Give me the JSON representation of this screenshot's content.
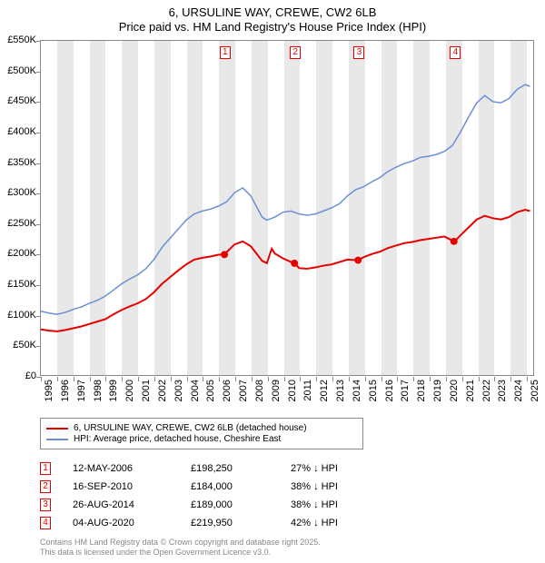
{
  "title": "6, URSULINE WAY, CREWE, CW2 6LB",
  "subtitle": "Price paid vs. HM Land Registry's House Price Index (HPI)",
  "chart": {
    "type": "line",
    "background_color": "#ffffff",
    "grid_band_color": "#e8e8e8",
    "axis_color": "#888888",
    "ylim": [
      0,
      550000
    ],
    "yticks": [
      0,
      50000,
      100000,
      150000,
      200000,
      250000,
      300000,
      350000,
      400000,
      450000,
      500000,
      550000
    ],
    "ytick_labels": [
      "£0",
      "£50K",
      "£100K",
      "£150K",
      "£200K",
      "£250K",
      "£300K",
      "£350K",
      "£400K",
      "£450K",
      "£500K",
      "£550K"
    ],
    "xlim": [
      1995,
      2025.5
    ],
    "xticks": [
      1995,
      1996,
      1997,
      1998,
      1999,
      2000,
      2001,
      2002,
      2003,
      2004,
      2005,
      2006,
      2007,
      2008,
      2009,
      2010,
      2011,
      2012,
      2013,
      2014,
      2015,
      2016,
      2017,
      2018,
      2019,
      2020,
      2021,
      2022,
      2023,
      2024,
      2025
    ],
    "label_fontsize": 11,
    "series": [
      {
        "name": "HPI: Average price, detached house, Cheshire East",
        "color": "#6a8fd4",
        "line_width": 1.5,
        "data": [
          [
            1995,
            105000
          ],
          [
            1995.5,
            102000
          ],
          [
            1996,
            100000
          ],
          [
            1996.5,
            103000
          ],
          [
            1997,
            108000
          ],
          [
            1997.5,
            112000
          ],
          [
            1998,
            118000
          ],
          [
            1998.5,
            123000
          ],
          [
            1999,
            130000
          ],
          [
            1999.5,
            140000
          ],
          [
            2000,
            150000
          ],
          [
            2000.5,
            158000
          ],
          [
            2001,
            165000
          ],
          [
            2001.5,
            175000
          ],
          [
            2002,
            190000
          ],
          [
            2002.5,
            210000
          ],
          [
            2003,
            225000
          ],
          [
            2003.5,
            240000
          ],
          [
            2004,
            255000
          ],
          [
            2004.5,
            265000
          ],
          [
            2005,
            270000
          ],
          [
            2005.5,
            273000
          ],
          [
            2006,
            278000
          ],
          [
            2006.5,
            285000
          ],
          [
            2007,
            300000
          ],
          [
            2007.5,
            308000
          ],
          [
            2008,
            295000
          ],
          [
            2008.3,
            280000
          ],
          [
            2008.7,
            260000
          ],
          [
            2009,
            255000
          ],
          [
            2009.5,
            260000
          ],
          [
            2010,
            268000
          ],
          [
            2010.5,
            270000
          ],
          [
            2011,
            265000
          ],
          [
            2011.5,
            263000
          ],
          [
            2012,
            265000
          ],
          [
            2012.5,
            270000
          ],
          [
            2013,
            275000
          ],
          [
            2013.5,
            282000
          ],
          [
            2014,
            295000
          ],
          [
            2014.5,
            305000
          ],
          [
            2015,
            310000
          ],
          [
            2015.5,
            318000
          ],
          [
            2016,
            325000
          ],
          [
            2016.5,
            335000
          ],
          [
            2017,
            342000
          ],
          [
            2017.5,
            348000
          ],
          [
            2018,
            352000
          ],
          [
            2018.5,
            358000
          ],
          [
            2019,
            360000
          ],
          [
            2019.5,
            363000
          ],
          [
            2020,
            368000
          ],
          [
            2020.5,
            378000
          ],
          [
            2021,
            400000
          ],
          [
            2021.5,
            425000
          ],
          [
            2022,
            448000
          ],
          [
            2022.5,
            460000
          ],
          [
            2023,
            450000
          ],
          [
            2023.5,
            448000
          ],
          [
            2024,
            455000
          ],
          [
            2024.5,
            470000
          ],
          [
            2025,
            478000
          ],
          [
            2025.3,
            475000
          ]
        ]
      },
      {
        "name": "6, URSULINE WAY, CREWE, CW2 6LB (detached house)",
        "color": "#e60000",
        "line_width": 2,
        "data": [
          [
            1995,
            75000
          ],
          [
            1995.5,
            73000
          ],
          [
            1996,
            72000
          ],
          [
            1996.5,
            74000
          ],
          [
            1997,
            77000
          ],
          [
            1997.5,
            80000
          ],
          [
            1998,
            84000
          ],
          [
            1998.5,
            88000
          ],
          [
            1999,
            92000
          ],
          [
            1999.5,
            100000
          ],
          [
            2000,
            107000
          ],
          [
            2000.5,
            113000
          ],
          [
            2001,
            118000
          ],
          [
            2001.5,
            125000
          ],
          [
            2002,
            136000
          ],
          [
            2002.5,
            150000
          ],
          [
            2003,
            161000
          ],
          [
            2003.5,
            172000
          ],
          [
            2004,
            182000
          ],
          [
            2004.5,
            190000
          ],
          [
            2005,
            193000
          ],
          [
            2005.5,
            195000
          ],
          [
            2006,
            198000
          ],
          [
            2006.37,
            198250
          ],
          [
            2006.5,
            202000
          ],
          [
            2007,
            215000
          ],
          [
            2007.5,
            220000
          ],
          [
            2008,
            212000
          ],
          [
            2008.3,
            202000
          ],
          [
            2008.7,
            188000
          ],
          [
            2009,
            184000
          ],
          [
            2009.3,
            208000
          ],
          [
            2009.5,
            200000
          ],
          [
            2010,
            192000
          ],
          [
            2010.5,
            186000
          ],
          [
            2010.71,
            184000
          ],
          [
            2011,
            176000
          ],
          [
            2011.5,
            175000
          ],
          [
            2012,
            177000
          ],
          [
            2012.5,
            180000
          ],
          [
            2013,
            182000
          ],
          [
            2013.5,
            186000
          ],
          [
            2014,
            190000
          ],
          [
            2014.65,
            189000
          ],
          [
            2015,
            194000
          ],
          [
            2015.5,
            199000
          ],
          [
            2016,
            203000
          ],
          [
            2016.5,
            209000
          ],
          [
            2017,
            213000
          ],
          [
            2017.5,
            217000
          ],
          [
            2018,
            219000
          ],
          [
            2018.5,
            222000
          ],
          [
            2019,
            224000
          ],
          [
            2019.5,
            226000
          ],
          [
            2020,
            228000
          ],
          [
            2020.59,
            219950
          ],
          [
            2020.7,
            222000
          ],
          [
            2021,
            230000
          ],
          [
            2021.5,
            243000
          ],
          [
            2022,
            256000
          ],
          [
            2022.5,
            262000
          ],
          [
            2023,
            258000
          ],
          [
            2023.5,
            256000
          ],
          [
            2024,
            260000
          ],
          [
            2024.5,
            268000
          ],
          [
            2025,
            272000
          ],
          [
            2025.3,
            270000
          ]
        ]
      }
    ],
    "sale_markers": [
      {
        "n": "1",
        "x": 2006.37,
        "price": 198250
      },
      {
        "n": "2",
        "x": 2010.71,
        "price": 184000
      },
      {
        "n": "3",
        "x": 2014.65,
        "price": 189000
      },
      {
        "n": "4",
        "x": 2020.59,
        "price": 219950
      }
    ]
  },
  "legend": {
    "items": [
      {
        "color": "#e60000",
        "label": "6, URSULINE WAY, CREWE, CW2 6LB (detached house)"
      },
      {
        "color": "#6a8fd4",
        "label": "HPI: Average price, detached house, Cheshire East"
      }
    ]
  },
  "sales_table": {
    "rows": [
      {
        "n": "1",
        "date": "12-MAY-2006",
        "price": "£198,250",
        "pct": "27% ↓ HPI"
      },
      {
        "n": "2",
        "date": "16-SEP-2010",
        "price": "£184,000",
        "pct": "38% ↓ HPI"
      },
      {
        "n": "3",
        "date": "26-AUG-2014",
        "price": "£189,000",
        "pct": "38% ↓ HPI"
      },
      {
        "n": "4",
        "date": "04-AUG-2020",
        "price": "£219,950",
        "pct": "42% ↓ HPI"
      }
    ]
  },
  "footer": {
    "line1": "Contains HM Land Registry data © Crown copyright and database right 2025.",
    "line2": "This data is licensed under the Open Government Licence v3.0."
  }
}
